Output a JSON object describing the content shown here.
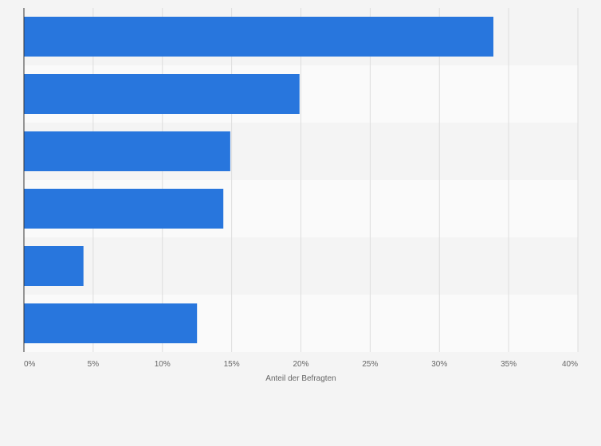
{
  "chart_data": {
    "type": "bar",
    "orientation": "horizontal",
    "categories": [
      "",
      "",
      "",
      "",
      "",
      ""
    ],
    "values": [
      33.9,
      19.9,
      14.9,
      14.4,
      4.3,
      12.5
    ],
    "title": "",
    "xlabel": "Anteil der Befragten",
    "ylabel": "",
    "xlim": [
      0,
      40
    ],
    "x_ticks": [
      0,
      5,
      10,
      15,
      20,
      25,
      30,
      35,
      40
    ],
    "x_tick_labels": [
      "0%",
      "5%",
      "10%",
      "15%",
      "20%",
      "25%",
      "30%",
      "35%",
      "40%"
    ],
    "grid": true,
    "legend": "none",
    "colors": {
      "bar": "#2876dd",
      "background": "#f4f4f4",
      "band_light": "#fafafa",
      "band_dark": "#f4f4f4",
      "gridline": "#dddddd",
      "axis": "#333333",
      "text": "#666666"
    }
  }
}
